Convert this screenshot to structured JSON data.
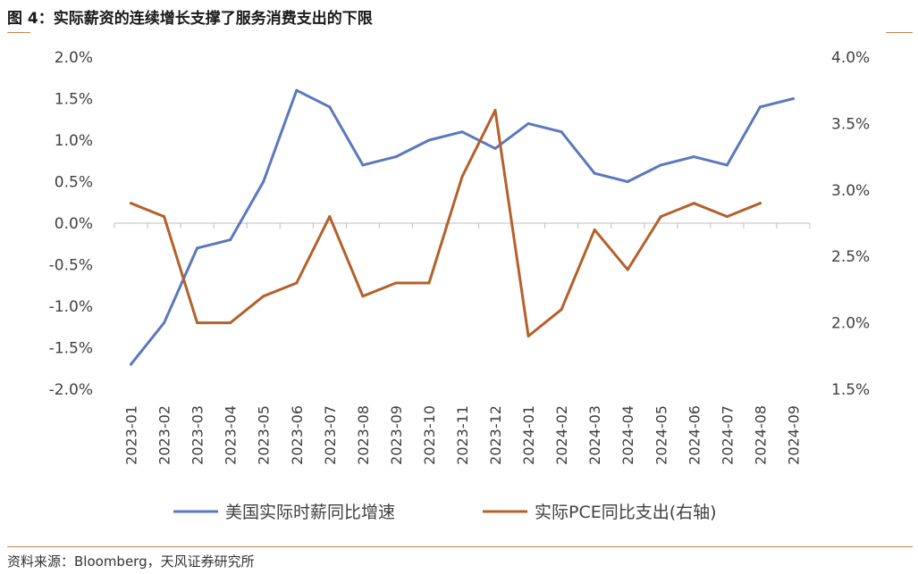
{
  "title": "图 4：实际薪资的连续增长支撑了服务消费支出的下限",
  "source": "资料来源：Bloomberg，天风证券研究所",
  "chart_data": {
    "type": "line",
    "categories": [
      "2023-01",
      "2023-02",
      "2023-03",
      "2023-04",
      "2023-05",
      "2023-06",
      "2023-07",
      "2023-08",
      "2023-09",
      "2023-10",
      "2023-11",
      "2023-12",
      "2024-01",
      "2024-02",
      "2024-03",
      "2024-04",
      "2024-05",
      "2024-06",
      "2024-07",
      "2024-08",
      "2024-09"
    ],
    "series": [
      {
        "name": "美国实际时薪同比增速",
        "axis": "left",
        "color": "#5b78be",
        "values": [
          -1.7,
          -1.2,
          -0.3,
          -0.2,
          0.5,
          1.6,
          1.4,
          0.7,
          0.8,
          1.0,
          1.1,
          0.9,
          1.2,
          1.1,
          0.6,
          0.5,
          0.7,
          0.8,
          0.7,
          1.4,
          1.5
        ]
      },
      {
        "name": "实际PCE同比支出(右轴)",
        "axis": "right",
        "color": "#b5602b",
        "values": [
          2.9,
          2.8,
          2.0,
          2.0,
          2.2,
          2.3,
          2.8,
          2.2,
          2.3,
          2.3,
          3.1,
          3.6,
          1.9,
          2.1,
          2.7,
          2.4,
          2.8,
          2.9,
          2.8,
          2.9,
          null
        ]
      }
    ],
    "y_left": {
      "min": -2.0,
      "max": 2.0,
      "step": 0.5,
      "tick_labels": [
        "2.0%",
        "1.5%",
        "1.0%",
        "0.5%",
        "0.0%",
        "-0.5%",
        "-1.0%",
        "-1.5%",
        "-2.0%"
      ]
    },
    "y_right": {
      "min": 1.5,
      "max": 4.0,
      "step": 0.5,
      "tick_labels": [
        "4.0%",
        "3.5%",
        "3.0%",
        "2.5%",
        "2.0%",
        "1.5%"
      ]
    },
    "grid": false,
    "legend_position": "bottom"
  }
}
